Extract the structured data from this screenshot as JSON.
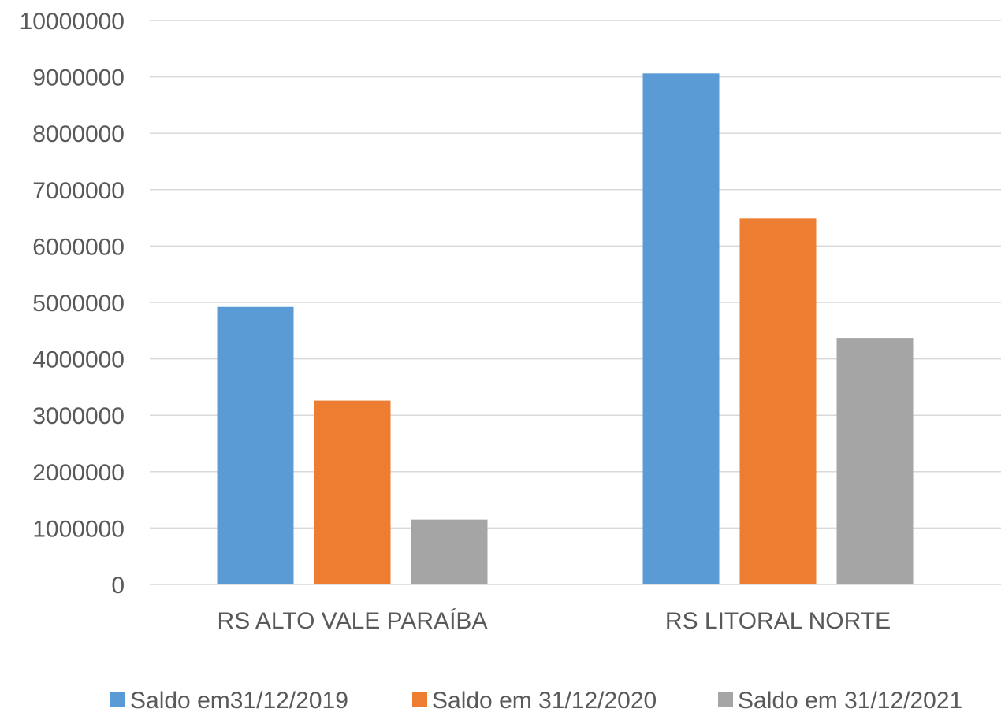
{
  "chart_data": {
    "type": "bar",
    "title": "",
    "xlabel": "",
    "ylabel": "",
    "categories": [
      "RS ALTO VALE PARAÍBA",
      "RS LITORAL NORTE"
    ],
    "ylim": [
      0,
      10000000
    ],
    "yticks": [
      0,
      1000000,
      2000000,
      3000000,
      4000000,
      5000000,
      6000000,
      7000000,
      8000000,
      9000000,
      10000000
    ],
    "ytick_labels": [
      "0",
      "1000000",
      "2000000",
      "3000000",
      "4000000",
      "5000000",
      "6000000",
      "7000000",
      "8000000",
      "9000000",
      "10000000"
    ],
    "grid": true,
    "legend_position": "bottom",
    "series": [
      {
        "name": "Saldo em31/12/2019",
        "color": "#5b9bd5",
        "values": [
          4920000,
          9060000
        ]
      },
      {
        "name": "Saldo em 31/12/2020",
        "color": "#ed7d31",
        "values": [
          3260000,
          6490000
        ]
      },
      {
        "name": "Saldo em 31/12/2021",
        "color": "#a5a5a5",
        "values": [
          1150000,
          4370000
        ]
      }
    ]
  }
}
